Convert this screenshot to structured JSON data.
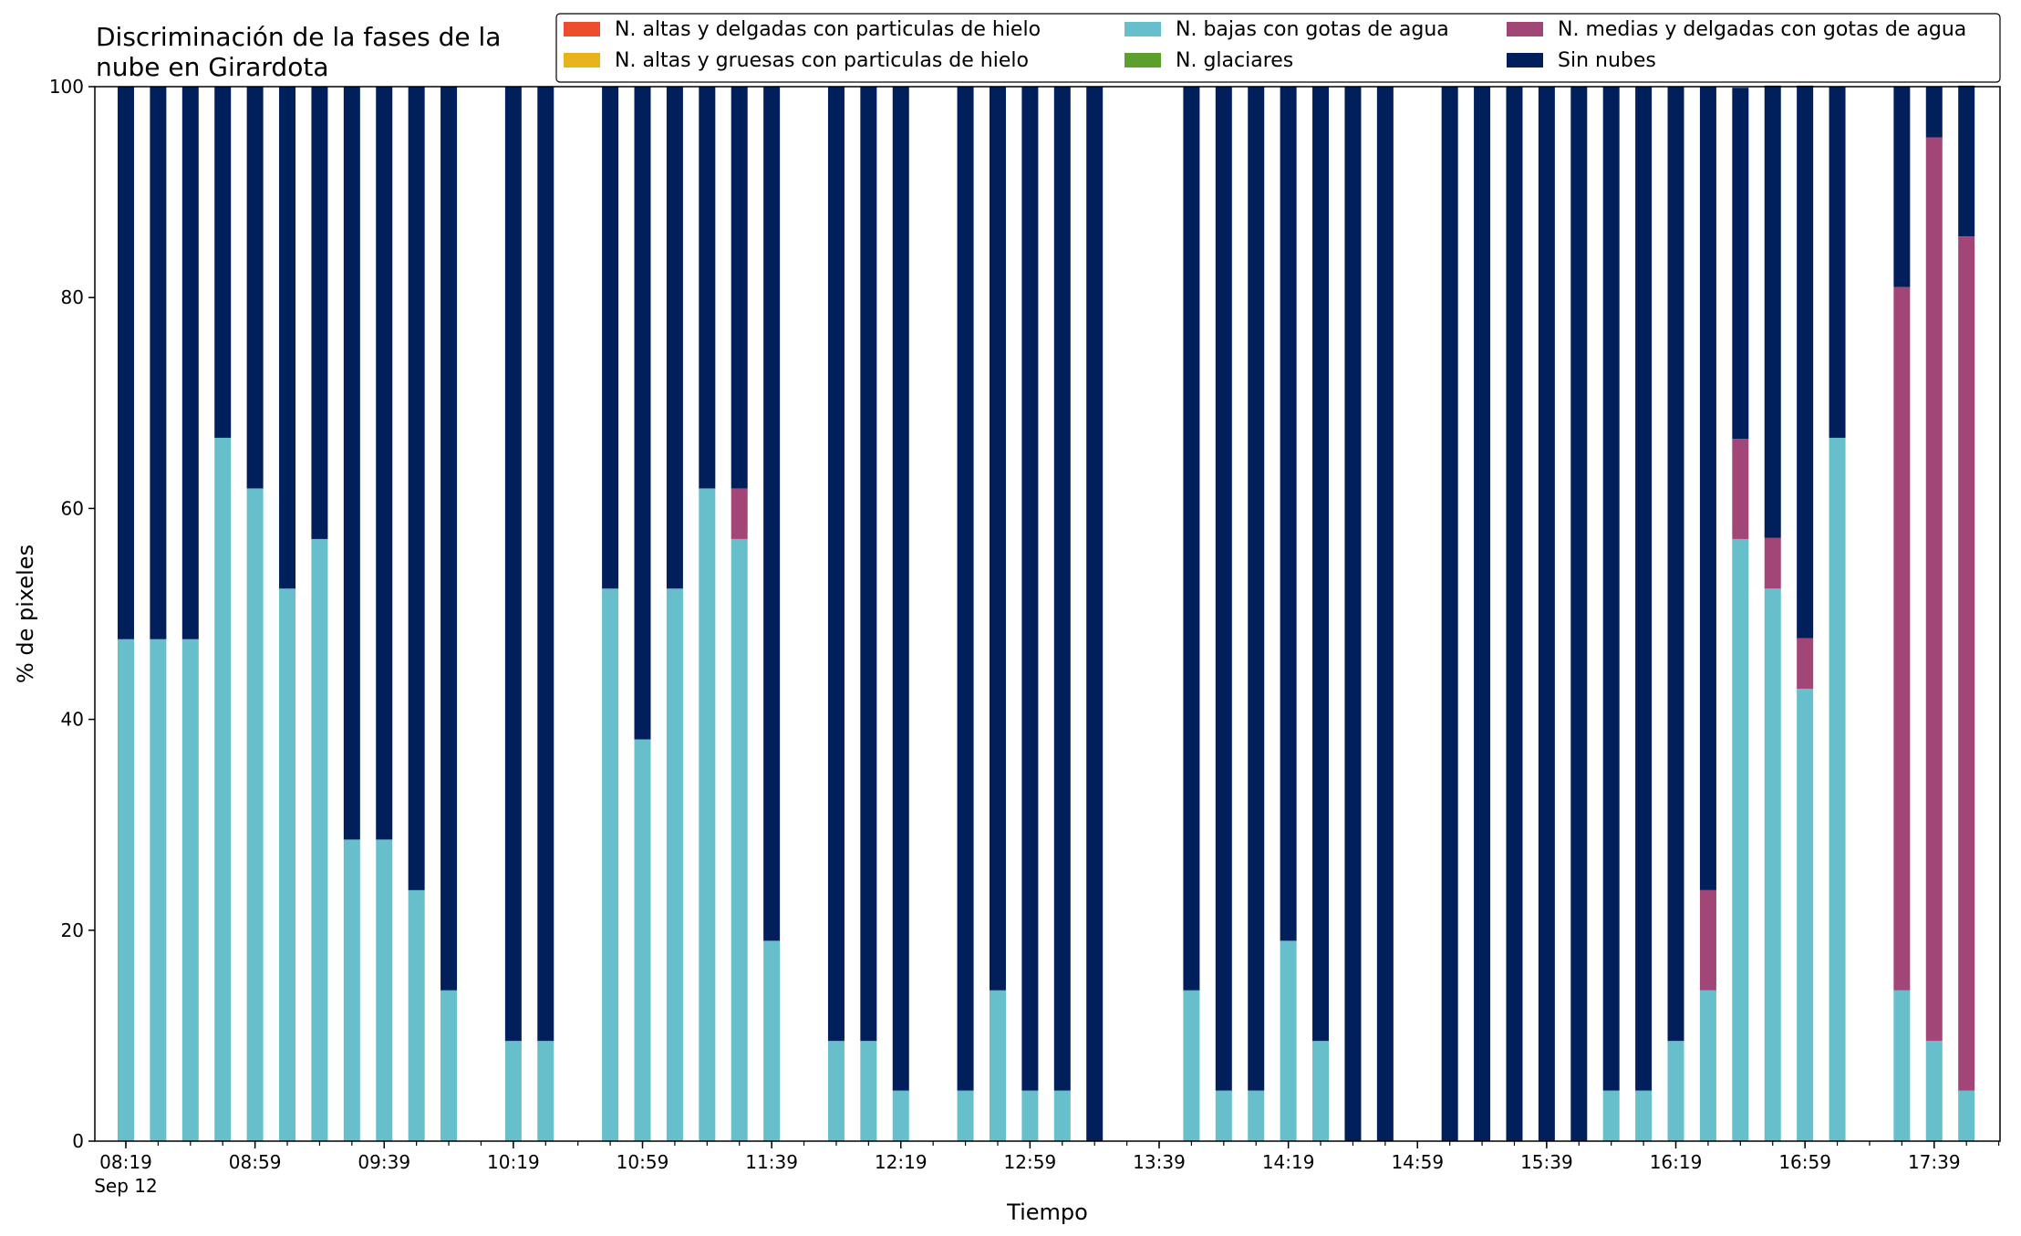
{
  "chart_data": {
    "type": "bar",
    "stacked": true,
    "title_lines": [
      "Discriminación de la fases de la",
      "nube en Girardota"
    ],
    "xlabel": "Tiempo",
    "ylabel": "% de pixeles",
    "ylim": [
      0,
      100
    ],
    "y_ticks": [
      "0",
      "20",
      "40",
      "60",
      "80",
      "100"
    ],
    "x_tick_labels": [
      "08:19",
      "08:59",
      "09:39",
      "10:19",
      "10:59",
      "11:39",
      "12:19",
      "12:59",
      "13:39",
      "14:19",
      "14:59",
      "15:39",
      "16:19",
      "16:59",
      "17:39"
    ],
    "x_date_label": "Sep 12",
    "x_range": [
      "08:19",
      "17:59"
    ],
    "bar_interval_minutes": 10,
    "grid": false,
    "legend_position": "top-right",
    "colors": {
      "altas_delgadas": "#ee4c2c",
      "altas_gruesas": "#e6b41a",
      "bajas": "#66bfca",
      "glaciares": "#5b9f2c",
      "medias": "#a24677",
      "sin_nubes": "#011f5b"
    },
    "legend": [
      {
        "key": "altas_delgadas",
        "label": "N. altas y delgadas con particulas de hielo"
      },
      {
        "key": "altas_gruesas",
        "label": "N. altas y gruesas con particulas de hielo"
      },
      {
        "key": "bajas",
        "label": "N. bajas con gotas de agua"
      },
      {
        "key": "glaciares",
        "label": "N. glaciares"
      },
      {
        "key": "medias",
        "label": "N. medias y delgadas con gotas de agua"
      },
      {
        "key": "sin_nubes",
        "label": "Sin nubes"
      }
    ],
    "bars": [
      {
        "time": "08:19",
        "bajas": 47.6,
        "medias": 0,
        "sin_nubes": 52.4
      },
      {
        "time": "08:29",
        "bajas": 47.6,
        "medias": 0,
        "sin_nubes": 52.4
      },
      {
        "time": "08:39",
        "bajas": 47.6,
        "medias": 0,
        "sin_nubes": 52.4
      },
      {
        "time": "08:49",
        "bajas": 66.7,
        "medias": 0,
        "sin_nubes": 33.3
      },
      {
        "time": "08:59",
        "bajas": 61.9,
        "medias": 0,
        "sin_nubes": 38.1
      },
      {
        "time": "09:09",
        "bajas": 52.4,
        "medias": 0,
        "sin_nubes": 47.6
      },
      {
        "time": "09:19",
        "bajas": 57.1,
        "medias": 0,
        "sin_nubes": 42.9
      },
      {
        "time": "09:29",
        "bajas": 28.6,
        "medias": 0,
        "sin_nubes": 71.4
      },
      {
        "time": "09:39",
        "bajas": 28.6,
        "medias": 0,
        "sin_nubes": 71.4
      },
      {
        "time": "09:49",
        "bajas": 23.8,
        "medias": 0,
        "sin_nubes": 76.2
      },
      {
        "time": "09:59",
        "bajas": 14.3,
        "medias": 0,
        "sin_nubes": 85.7
      },
      {
        "time": "10:19",
        "bajas": 9.5,
        "medias": 0,
        "sin_nubes": 90.5
      },
      {
        "time": "10:29",
        "bajas": 9.5,
        "medias": 0,
        "sin_nubes": 90.5
      },
      {
        "time": "10:49",
        "bajas": 52.4,
        "medias": 0,
        "sin_nubes": 47.6
      },
      {
        "time": "10:59",
        "bajas": 38.1,
        "medias": 0,
        "sin_nubes": 61.9
      },
      {
        "time": "11:09",
        "bajas": 52.4,
        "medias": 0,
        "sin_nubes": 47.6
      },
      {
        "time": "11:19",
        "bajas": 61.9,
        "medias": 0,
        "sin_nubes": 38.1
      },
      {
        "time": "11:29",
        "bajas": 57.1,
        "medias": 4.8,
        "sin_nubes": 38.1
      },
      {
        "time": "11:39",
        "bajas": 19.0,
        "medias": 0,
        "sin_nubes": 81.0
      },
      {
        "time": "11:59",
        "bajas": 9.5,
        "medias": 0,
        "sin_nubes": 90.5
      },
      {
        "time": "12:09",
        "bajas": 9.5,
        "medias": 0,
        "sin_nubes": 90.5
      },
      {
        "time": "12:19",
        "bajas": 4.8,
        "medias": 0,
        "sin_nubes": 95.2
      },
      {
        "time": "12:39",
        "bajas": 4.8,
        "medias": 0,
        "sin_nubes": 95.2
      },
      {
        "time": "12:49",
        "bajas": 14.3,
        "medias": 0,
        "sin_nubes": 85.7
      },
      {
        "time": "12:59",
        "bajas": 4.8,
        "medias": 0,
        "sin_nubes": 95.2
      },
      {
        "time": "13:09",
        "bajas": 4.8,
        "medias": 0,
        "sin_nubes": 95.2
      },
      {
        "time": "13:19",
        "bajas": 0,
        "medias": 0,
        "sin_nubes": 100
      },
      {
        "time": "13:49",
        "bajas": 14.3,
        "medias": 0,
        "sin_nubes": 85.7
      },
      {
        "time": "13:59",
        "bajas": 4.8,
        "medias": 0,
        "sin_nubes": 95.2
      },
      {
        "time": "14:09",
        "bajas": 4.8,
        "medias": 0,
        "sin_nubes": 95.2
      },
      {
        "time": "14:19",
        "bajas": 19.0,
        "medias": 0,
        "sin_nubes": 81.0
      },
      {
        "time": "14:29",
        "bajas": 9.5,
        "medias": 0,
        "sin_nubes": 90.5
      },
      {
        "time": "14:39",
        "bajas": 0,
        "medias": 0,
        "sin_nubes": 100
      },
      {
        "time": "14:49",
        "bajas": 0,
        "medias": 0,
        "sin_nubes": 100
      },
      {
        "time": "15:09",
        "bajas": 0,
        "medias": 0,
        "sin_nubes": 100
      },
      {
        "time": "15:19",
        "bajas": 0,
        "medias": 0,
        "sin_nubes": 100
      },
      {
        "time": "15:29",
        "bajas": 0,
        "medias": 0,
        "sin_nubes": 100
      },
      {
        "time": "15:39",
        "bajas": 0,
        "medias": 0,
        "sin_nubes": 100
      },
      {
        "time": "15:49",
        "bajas": 0,
        "medias": 0,
        "sin_nubes": 100
      },
      {
        "time": "15:59",
        "bajas": 4.8,
        "medias": 0,
        "sin_nubes": 95.2
      },
      {
        "time": "16:09",
        "bajas": 4.8,
        "medias": 0,
        "sin_nubes": 95.2
      },
      {
        "time": "16:19",
        "bajas": 9.5,
        "medias": 0,
        "sin_nubes": 90.5
      },
      {
        "time": "16:29",
        "bajas": 14.3,
        "medias": 9.5,
        "sin_nubes": 76.2
      },
      {
        "time": "16:39",
        "bajas": 57.1,
        "medias": 9.5,
        "sin_nubes": 33.3
      },
      {
        "time": "16:49",
        "bajas": 52.4,
        "medias": 4.8,
        "sin_nubes": 42.9
      },
      {
        "time": "16:59",
        "bajas": 42.9,
        "medias": 4.8,
        "sin_nubes": 52.4
      },
      {
        "time": "17:09",
        "bajas": 66.7,
        "medias": 0,
        "sin_nubes": 33.3
      },
      {
        "time": "17:29",
        "bajas": 14.3,
        "medias": 66.7,
        "sin_nubes": 19.0
      },
      {
        "time": "17:39",
        "bajas": 9.5,
        "medias": 85.7,
        "sin_nubes": 4.8
      },
      {
        "time": "17:49",
        "bajas": 4.8,
        "medias": 81.0,
        "sin_nubes": 14.3
      }
    ]
  }
}
